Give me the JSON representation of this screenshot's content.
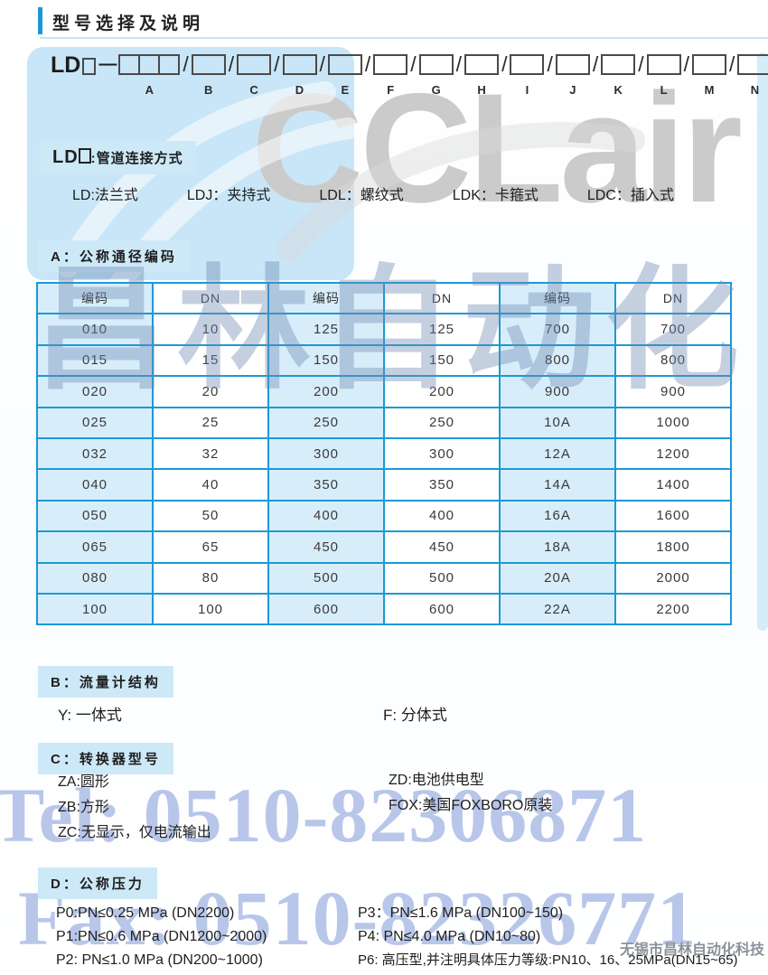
{
  "page": {
    "title": "型号选择及说明"
  },
  "model_code": {
    "prefix": "LD",
    "positions": [
      "A",
      "B",
      "C",
      "D",
      "E",
      "F",
      "G",
      "H",
      "I",
      "J",
      "K",
      "L",
      "M",
      "N"
    ]
  },
  "connection": {
    "header_prefix": "LD",
    "header_suffix": ":管道连接方式",
    "items": [
      "LD:法兰式",
      "LDJ：夹持式",
      "LDL：螺纹式",
      "LDK：卡箍式",
      "LDC：插入式"
    ]
  },
  "section_a": {
    "header": "A：公称通径编码",
    "table": {
      "headers": [
        "编码",
        "DN",
        "编码",
        "DN",
        "编码",
        "DN"
      ],
      "rows": [
        [
          "010",
          "10",
          "125",
          "125",
          "700",
          "700"
        ],
        [
          "015",
          "15",
          "150",
          "150",
          "800",
          "800"
        ],
        [
          "020",
          "20",
          "200",
          "200",
          "900",
          "900"
        ],
        [
          "025",
          "25",
          "250",
          "250",
          "10A",
          "1000"
        ],
        [
          "032",
          "32",
          "300",
          "300",
          "12A",
          "1200"
        ],
        [
          "040",
          "40",
          "350",
          "350",
          "14A",
          "1400"
        ],
        [
          "050",
          "50",
          "400",
          "400",
          "16A",
          "1600"
        ],
        [
          "065",
          "65",
          "450",
          "450",
          "18A",
          "1800"
        ],
        [
          "080",
          "80",
          "500",
          "500",
          "20A",
          "2000"
        ],
        [
          "100",
          "100",
          "600",
          "600",
          "22A",
          "2200"
        ]
      ]
    }
  },
  "section_b": {
    "header": "B：流量计结构",
    "items": [
      "Y: 一体式",
      "F: 分体式"
    ]
  },
  "section_c": {
    "header": "C：转换器型号",
    "left_items": [
      "ZA:圆形",
      "ZB:方形",
      "ZC:无显示，仅电流输出"
    ],
    "right_items": [
      "ZD:电池供电型",
      "FOX:美国FOXBORO原装"
    ]
  },
  "section_d": {
    "header": "D：公称压力",
    "left_items": [
      "P0:PN≤0.25 MPa (DN2200)",
      "P1:PN≤0.6 MPa (DN1200~2000)",
      "P2: PN≤1.0 MPa (DN200~1000)"
    ],
    "right_items": [
      "P3：PN≤1.6 MPa (DN100~150)",
      "P4: PN≤4.0 MPa (DN10~80)",
      "P6: 高压型,并注明具体压力等级:PN10、16、25MPa(DN15~65)"
    ]
  },
  "watermarks": {
    "logo_text": "CCLair",
    "company_cn": "昌林自动化",
    "tel": "Tel: 0510-82306871",
    "fax": "Fax: 0510-82326771",
    "company_full": "无锡市昌林自动化科技"
  },
  "colors": {
    "accent_blue": "#1b99d6",
    "panel_blue": "#c8e6f7",
    "cell_blue": "#d8edfa",
    "watermark_gray": "#cbcbcb",
    "watermark_slate": "#6e8ab3",
    "watermark_periwinkle": "#8ea5dc"
  }
}
